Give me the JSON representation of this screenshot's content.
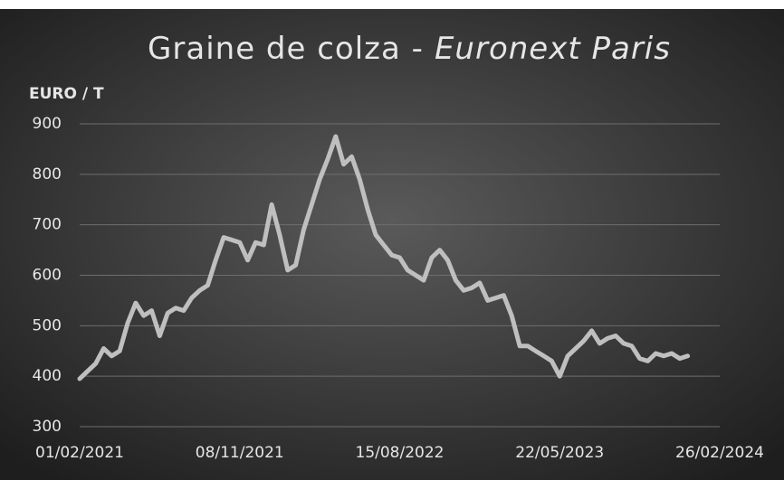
{
  "chart_data": {
    "type": "line",
    "title": "Graine de colza -",
    "subtitle": "Euronext Paris",
    "y_label": "EURO / T",
    "x": [
      "2021-02-01",
      "2021-02-15",
      "2021-03-01",
      "2021-03-15",
      "2021-03-29",
      "2021-04-12",
      "2021-04-26",
      "2021-05-10",
      "2021-05-24",
      "2021-06-07",
      "2021-06-21",
      "2021-07-05",
      "2021-07-19",
      "2021-08-02",
      "2021-08-16",
      "2021-08-30",
      "2021-09-13",
      "2021-09-27",
      "2021-10-11",
      "2021-10-25",
      "2021-11-08",
      "2021-11-22",
      "2021-12-06",
      "2021-12-20",
      "2022-01-03",
      "2022-01-17",
      "2022-01-31",
      "2022-02-14",
      "2022-02-28",
      "2022-03-14",
      "2022-03-28",
      "2022-04-11",
      "2022-04-25",
      "2022-05-09",
      "2022-05-23",
      "2022-06-06",
      "2022-06-20",
      "2022-07-04",
      "2022-07-18",
      "2022-08-01",
      "2022-08-15",
      "2022-08-29",
      "2022-09-12",
      "2022-09-26",
      "2022-10-10",
      "2022-10-24",
      "2022-11-07",
      "2022-11-21",
      "2022-12-05",
      "2022-12-19",
      "2023-01-02",
      "2023-01-16",
      "2023-01-30",
      "2023-02-13",
      "2023-02-27",
      "2023-03-13",
      "2023-03-27",
      "2023-04-10",
      "2023-04-24",
      "2023-05-08",
      "2023-05-22",
      "2023-06-05",
      "2023-06-19",
      "2023-07-03",
      "2023-07-17",
      "2023-07-31",
      "2023-08-14",
      "2023-08-28",
      "2023-09-11",
      "2023-09-25",
      "2023-10-09",
      "2023-10-23",
      "2023-11-06",
      "2023-11-20",
      "2023-12-04",
      "2023-12-18",
      "2024-01-01"
    ],
    "series": [
      {
        "name": "Graine de colza",
        "color": "#bfbfbf",
        "values": [
          395,
          410,
          425,
          455,
          440,
          450,
          505,
          545,
          520,
          530,
          480,
          525,
          535,
          530,
          555,
          570,
          580,
          630,
          675,
          670,
          665,
          630,
          665,
          660,
          740,
          680,
          610,
          620,
          690,
          740,
          790,
          830,
          875,
          820,
          835,
          790,
          730,
          680,
          660,
          640,
          635,
          610,
          600,
          590,
          635,
          650,
          630,
          590,
          570,
          575,
          585,
          550,
          555,
          560,
          520,
          460,
          460,
          450,
          440,
          430,
          400,
          440,
          455,
          470,
          490,
          465,
          475,
          480,
          465,
          460,
          435,
          430,
          445,
          440,
          445,
          435,
          440
        ]
      }
    ],
    "xlim": [
      "2021-02-01",
      "2024-02-26"
    ],
    "xticks": [
      {
        "value": "2021-02-01",
        "label": "01/02/2021"
      },
      {
        "value": "2021-11-08",
        "label": "08/11/2021"
      },
      {
        "value": "2022-08-15",
        "label": "15/08/2022"
      },
      {
        "value": "2023-05-22",
        "label": "22/05/2023"
      },
      {
        "value": "2024-02-26",
        "label": "26/02/2024"
      }
    ],
    "ylim": [
      300,
      900
    ],
    "yticks": [
      300,
      400,
      500,
      600,
      700,
      800,
      900
    ],
    "grid": true
  }
}
